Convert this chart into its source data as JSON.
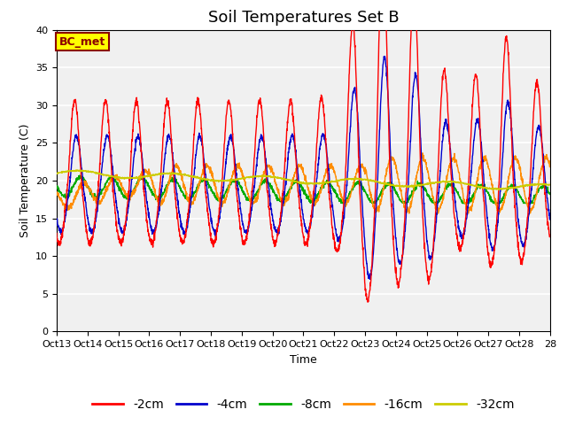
{
  "title": "Soil Temperatures Set B",
  "xlabel": "Time",
  "ylabel": "Soil Temperature (C)",
  "ylim": [
    0,
    40
  ],
  "yticks": [
    0,
    5,
    10,
    15,
    20,
    25,
    30,
    35,
    40
  ],
  "xtick_labels": [
    "Oct 13",
    "Oct 14",
    "Oct 15",
    "Oct 16",
    "Oct 17",
    "Oct 18",
    "Oct 19",
    "Oct 20",
    "Oct 21",
    "Oct 22",
    "Oct 23",
    "Oct 24",
    "Oct 25",
    "Oct 26",
    "Oct 27",
    "Oct 28"
  ],
  "annotation_text": "BC_met",
  "annotation_bg": "#FFFF00",
  "annotation_border": "#8B0000",
  "colors": {
    "-2cm": "#FF0000",
    "-4cm": "#0000CC",
    "-8cm": "#00AA00",
    "-16cm": "#FF8C00",
    "-32cm": "#CCCC00"
  },
  "legend_labels": [
    "-2cm",
    "-4cm",
    "-8cm",
    "-16cm",
    "-32cm"
  ],
  "bg_color": "#E8E8E8",
  "plot_bg": "#F0F0F0",
  "title_fontsize": 13,
  "axis_label_fontsize": 9,
  "tick_fontsize": 8,
  "legend_fontsize": 10
}
